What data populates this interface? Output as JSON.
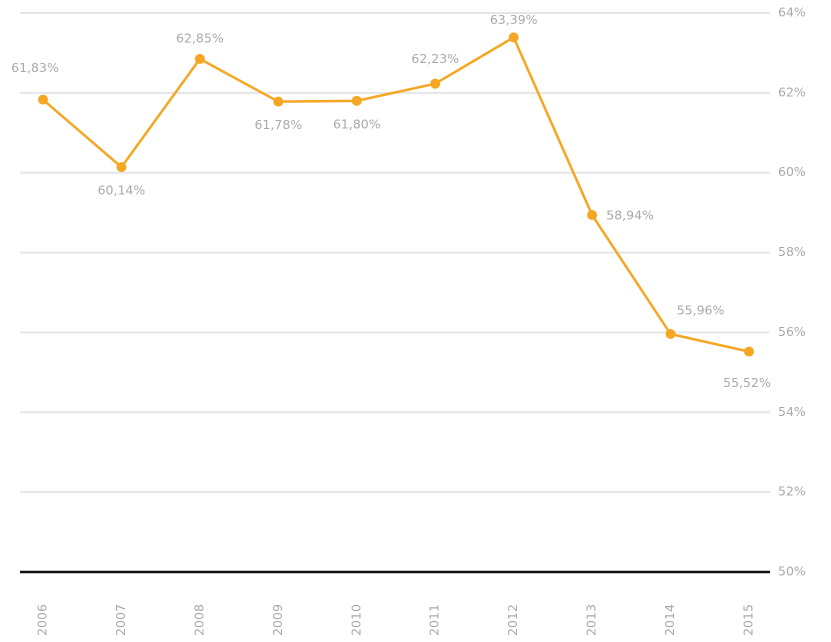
{
  "chart_data": {
    "type": "line",
    "categories": [
      "2006",
      "2007",
      "2008",
      "2009",
      "2010",
      "2011",
      "2012",
      "2013",
      "2014",
      "2015"
    ],
    "values": [
      61.83,
      60.14,
      62.85,
      61.78,
      61.8,
      62.23,
      63.39,
      58.94,
      55.96,
      55.52
    ],
    "value_labels": [
      "61,83%",
      "60,14%",
      "62,85%",
      "61,78%",
      "61,80%",
      "62,23%",
      "63,39%",
      "58,94%",
      "55,96%",
      "55,52%"
    ],
    "color": "#f5a623",
    "ylim": [
      50,
      64
    ],
    "yticks": [
      {
        "value": 50,
        "label": "50%"
      },
      {
        "value": 52,
        "label": "52%"
      },
      {
        "value": 54,
        "label": "54%"
      },
      {
        "value": 56,
        "label": "56%"
      },
      {
        "value": 58,
        "label": "58%"
      },
      {
        "value": 60,
        "label": "60%"
      },
      {
        "value": 62,
        "label": "62%"
      },
      {
        "value": 64,
        "label": "64%"
      }
    ],
    "grid": true
  }
}
